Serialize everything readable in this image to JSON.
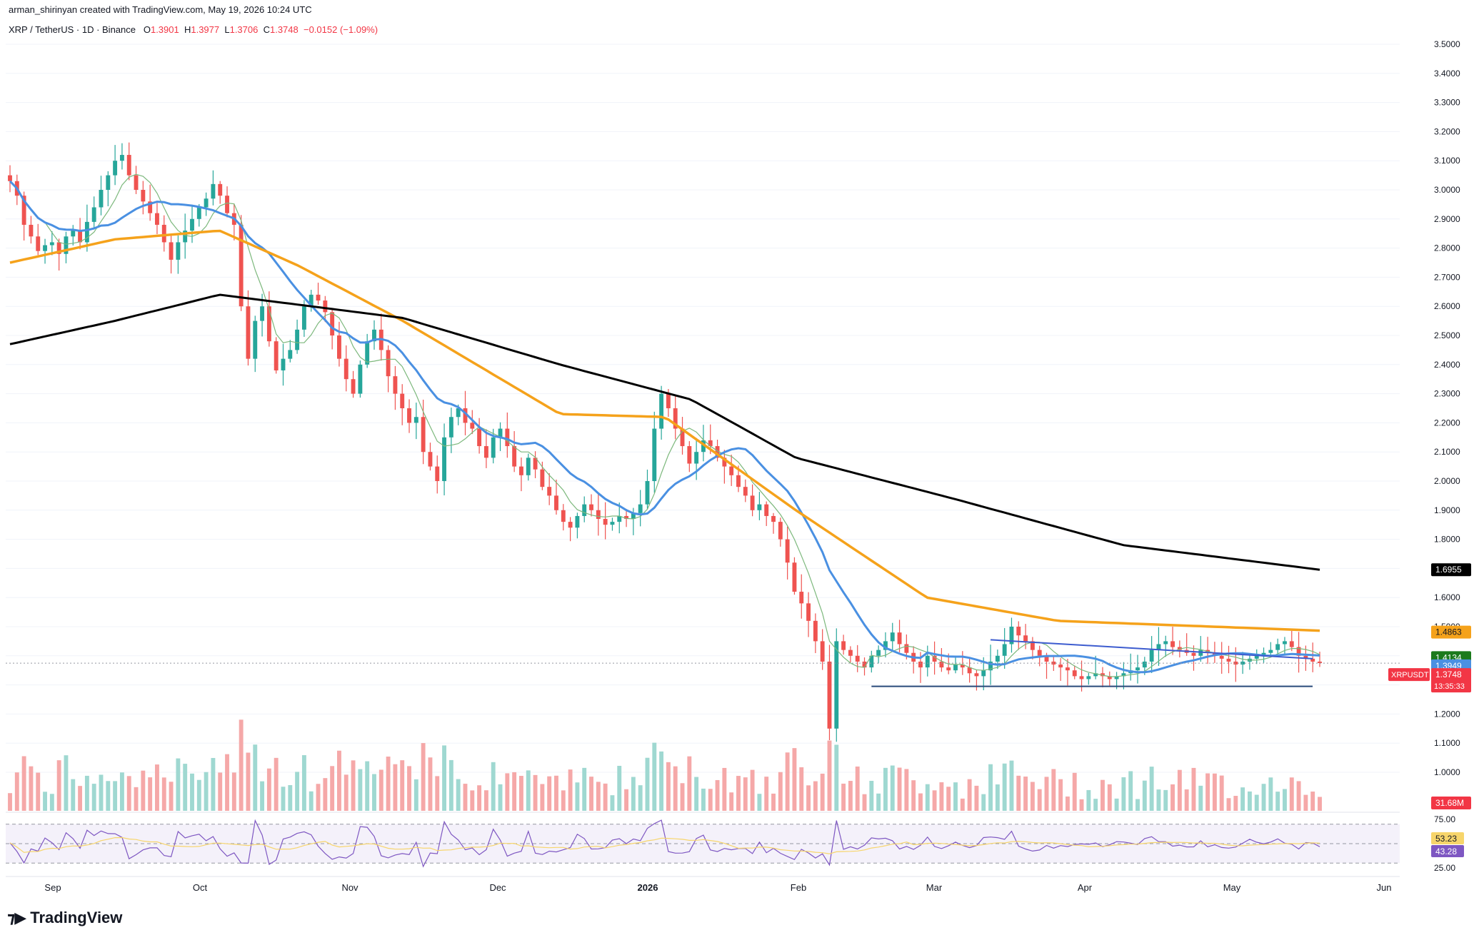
{
  "header": {
    "credit": "arman_shirinyan created with TradingView.com, May 19, 2026 10:24 UTC",
    "symbol": "XRP / TetherUS · 1D · Binance",
    "ohlc": {
      "o_label": "O",
      "o": "1.3901",
      "h_label": "H",
      "h": "1.3977",
      "l_label": "L",
      "l": "1.3706",
      "c_label": "C",
      "c": "1.3748",
      "change": "−0.0152 (−1.09%)"
    }
  },
  "brand": {
    "name": "TradingView",
    "logo": "tradingview-logo-icon"
  },
  "colors": {
    "up": "#26a69a",
    "down": "#ef5350",
    "ma20": "#7cb87c",
    "ma50": "#4a90e2",
    "ma100": "#f5a21b",
    "ma200": "#000000",
    "rsi": "#7e57c2",
    "rsi_ma": "#f7d56b",
    "trendline": "#3d5ccf",
    "support": "#2a4a7a"
  },
  "chart_data": {
    "type": "candlestick",
    "title": "",
    "xlabel": "",
    "ylabel": "",
    "ylim": [
      1.0,
      3.5
    ],
    "x_ticks": [
      "Sep",
      "Oct",
      "Nov",
      "Dec",
      "2026",
      "Feb",
      "Mar",
      "Apr",
      "May",
      "Jun"
    ],
    "y_ticks": [
      "3.5000",
      "3.4000",
      "3.3000",
      "3.2000",
      "3.1000",
      "3.0000",
      "2.9000",
      "2.8000",
      "2.7000",
      "2.6000",
      "2.5000",
      "2.4000",
      "2.3000",
      "2.2000",
      "2.1000",
      "2.0000",
      "1.9000",
      "1.8000",
      "1.7000",
      "1.6000",
      "1.5000",
      "1.4000",
      "1.3000",
      "1.2000",
      "1.1000",
      "1.0000"
    ],
    "price_labels": [
      {
        "name": "ma200",
        "value": "1.6955",
        "num": 1.6955,
        "bg": "#000000",
        "fg": "#ffffff"
      },
      {
        "name": "ma100",
        "value": "1.4863",
        "num": 1.4863,
        "bg": "#f5a21b",
        "fg": "#131722"
      },
      {
        "name": "ma20",
        "value": "1.4134",
        "num": 1.4134,
        "bg": "#1b7a1b",
        "fg": "#ffffff"
      },
      {
        "name": "ma50",
        "value": "1.3949",
        "num": 1.3949,
        "bg": "#4a90e2",
        "fg": "#ffffff"
      },
      {
        "name": "close",
        "value": "1.3748",
        "num": 1.3748,
        "bg": "#f23645",
        "fg": "#ffffff",
        "ticker": "XRPUSDT",
        "countdown": "13:35:33"
      }
    ],
    "volume_label": "31.68M",
    "rsi": {
      "ticks": [
        "75.00",
        "25.00"
      ],
      "value": "53.23",
      "ma_value": "43.28",
      "levels": [
        70,
        50,
        30
      ]
    },
    "closes": [
      3.03,
      2.98,
      2.88,
      2.84,
      2.79,
      2.81,
      2.82,
      2.78,
      2.84,
      2.86,
      2.82,
      2.89,
      2.94,
      3.0,
      3.05,
      3.1,
      3.12,
      3.05,
      3.0,
      2.96,
      2.92,
      2.88,
      2.82,
      2.76,
      2.82,
      2.86,
      2.9,
      2.94,
      2.97,
      3.02,
      2.98,
      2.92,
      2.88,
      2.6,
      2.42,
      2.55,
      2.6,
      2.48,
      2.38,
      2.42,
      2.45,
      2.52,
      2.6,
      2.64,
      2.62,
      2.58,
      2.5,
      2.42,
      2.35,
      2.3,
      2.4,
      2.48,
      2.52,
      2.45,
      2.36,
      2.3,
      2.25,
      2.2,
      2.22,
      2.1,
      2.05,
      2.0,
      2.15,
      2.22,
      2.25,
      2.2,
      2.18,
      2.12,
      2.08,
      2.15,
      2.18,
      2.12,
      2.05,
      2.02,
      2.08,
      2.04,
      1.98,
      1.95,
      1.9,
      1.86,
      1.84,
      1.88,
      1.92,
      1.9,
      1.87,
      1.85,
      1.86,
      1.88,
      1.87,
      1.89,
      1.92,
      2.0,
      2.18,
      2.3,
      2.25,
      2.18,
      2.12,
      2.06,
      2.1,
      2.14,
      2.12,
      2.08,
      2.05,
      2.02,
      1.98,
      1.95,
      1.9,
      1.92,
      1.88,
      1.86,
      1.8,
      1.72,
      1.62,
      1.58,
      1.52,
      1.45,
      1.38,
      1.15,
      1.45,
      1.42,
      1.4,
      1.38,
      1.36,
      1.4,
      1.42,
      1.45,
      1.48,
      1.44,
      1.41,
      1.38,
      1.36,
      1.4,
      1.38,
      1.36,
      1.35,
      1.37,
      1.36,
      1.34,
      1.33,
      1.35,
      1.38,
      1.4,
      1.44,
      1.5,
      1.47,
      1.45,
      1.42,
      1.4,
      1.38,
      1.37,
      1.36,
      1.35,
      1.33,
      1.32,
      1.33,
      1.34,
      1.33,
      1.32,
      1.33,
      1.34,
      1.35,
      1.36,
      1.38,
      1.42,
      1.44,
      1.45,
      1.43,
      1.42,
      1.41,
      1.4,
      1.42,
      1.41,
      1.4,
      1.39,
      1.38,
      1.37,
      1.38,
      1.39,
      1.4,
      1.41,
      1.42,
      1.44,
      1.45,
      1.43,
      1.4,
      1.39,
      1.38,
      1.375
    ]
  }
}
